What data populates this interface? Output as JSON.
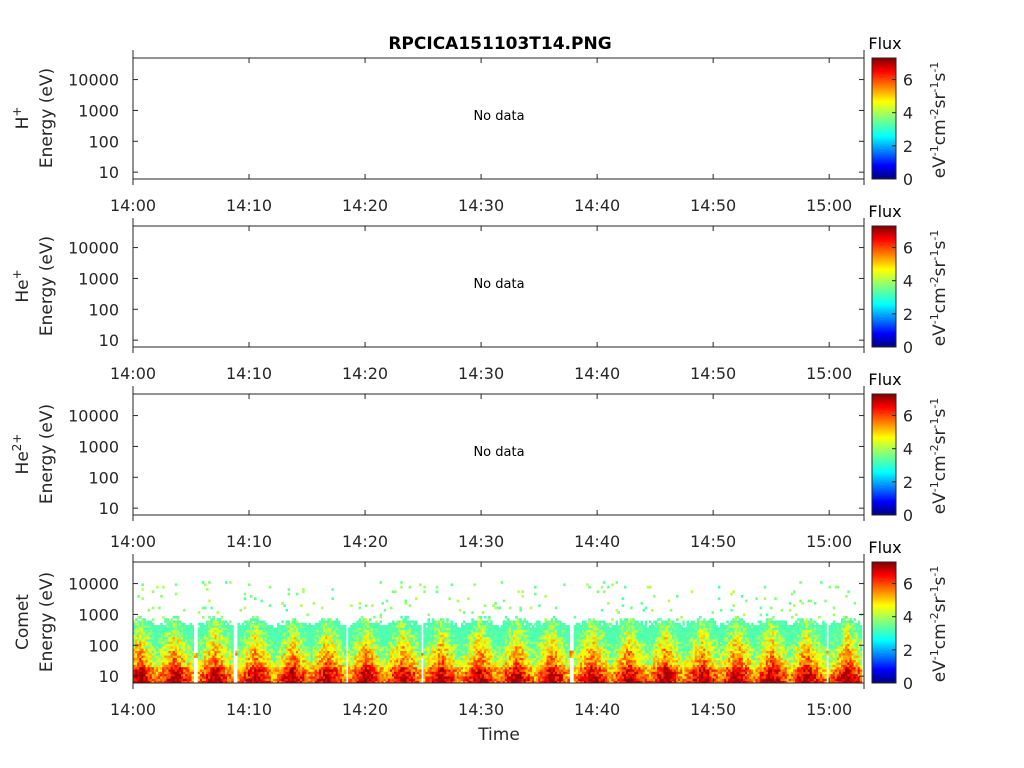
{
  "title": "RPCICA151103T14.PNG",
  "xlabel": "Time",
  "x_ticks": [
    "14:00",
    "14:10",
    "14:20",
    "14:30",
    "14:40",
    "14:50",
    "15:00"
  ],
  "y_ticks": [
    "10",
    "100",
    "1000",
    "10000"
  ],
  "colorbar": {
    "label": "Flux",
    "units": "eV",
    "ticks": [
      "0",
      "2",
      "4",
      "6"
    ],
    "colormap": "jet",
    "range": [
      0,
      7.3
    ]
  },
  "panels": [
    {
      "species": "H",
      "species_sup": "+",
      "ylabel": "Energy (eV)",
      "message": "No data"
    },
    {
      "species": "He",
      "species_sup": "+",
      "ylabel": "Energy (eV)",
      "message": "No data"
    },
    {
      "species": "He",
      "species_sup": "2+",
      "ylabel": "Energy (eV)",
      "message": "No data"
    },
    {
      "species": "Comet",
      "species_sup": "",
      "ylabel": "Energy (eV)",
      "message": ""
    }
  ],
  "chart_data": {
    "type": "heatmap",
    "title": "RPCICA151103T14.PNG",
    "xlabel": "Time",
    "ylabel": "Energy (eV)",
    "x_range": [
      "14:00",
      "15:03"
    ],
    "y_range": [
      6,
      50000
    ],
    "y_scale": "log",
    "color_label": "Flux",
    "color_range": [
      0,
      7.3
    ],
    "panels": [
      {
        "name": "H+",
        "data": []
      },
      {
        "name": "He+",
        "data": []
      },
      {
        "name": "He2+",
        "data": []
      },
      {
        "name": "Comet",
        "burst_times_min": [
          0.5,
          3.5,
          7,
          10.5,
          13.7,
          16.7,
          20,
          23.2,
          26.5,
          29.8,
          33,
          36,
          39.5,
          42.7,
          45.8,
          49,
          52,
          55,
          58,
          61.5
        ],
        "band_energy_ev": 50,
        "flux_peak": 7,
        "typical_energy_ev": [
          6,
          500
        ],
        "sporadic_energy_ev": [
          700,
          12000
        ]
      }
    ]
  }
}
